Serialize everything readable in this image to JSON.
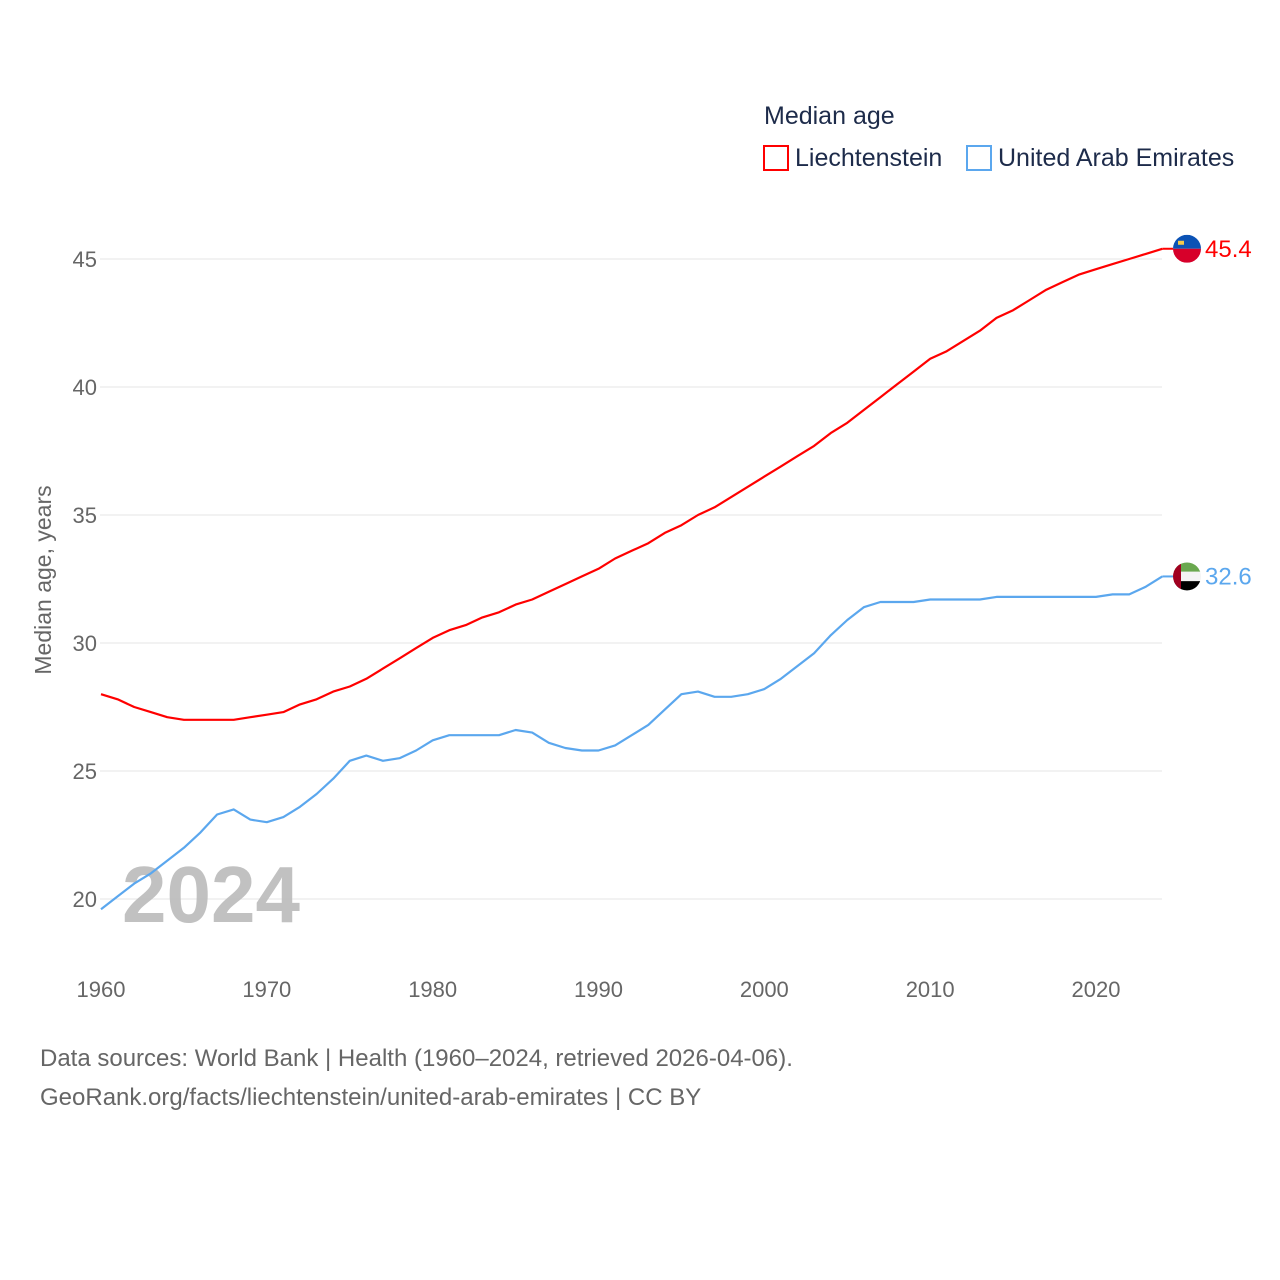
{
  "chart_data": {
    "type": "line",
    "title": "",
    "legend_title": "Median age",
    "legend_position": "top-right",
    "ylabel": "Median age, years",
    "xlabel": "",
    "ylim": [
      19,
      46.5
    ],
    "xlim": [
      1960,
      2024
    ],
    "yticks": [
      20,
      25,
      30,
      35,
      40,
      45
    ],
    "ytick_labels": [
      "20",
      "25",
      "30",
      "35",
      "40",
      "45"
    ],
    "xticks": [
      1960,
      1970,
      1980,
      1990,
      2000,
      2010,
      2020
    ],
    "xtick_labels": [
      "1960",
      "1970",
      "1980",
      "1990",
      "2000",
      "2010",
      "2020"
    ],
    "grid": true,
    "year_watermark": "2024",
    "x": [
      1960,
      1961,
      1962,
      1963,
      1964,
      1965,
      1966,
      1967,
      1968,
      1969,
      1970,
      1971,
      1972,
      1973,
      1974,
      1975,
      1976,
      1977,
      1978,
      1979,
      1980,
      1981,
      1982,
      1983,
      1984,
      1985,
      1986,
      1987,
      1988,
      1989,
      1990,
      1991,
      1992,
      1993,
      1994,
      1995,
      1996,
      1997,
      1998,
      1999,
      2000,
      2001,
      2002,
      2003,
      2004,
      2005,
      2006,
      2007,
      2008,
      2009,
      2010,
      2011,
      2012,
      2013,
      2014,
      2015,
      2016,
      2017,
      2018,
      2019,
      2020,
      2021,
      2022,
      2023,
      2024
    ],
    "series": [
      {
        "name": "Liechtenstein",
        "color": "#ff0000",
        "end_label": "45.4",
        "flag": "liechtenstein-flag",
        "values": [
          28.0,
          27.8,
          27.5,
          27.3,
          27.1,
          27.0,
          27.0,
          27.0,
          27.0,
          27.1,
          27.2,
          27.3,
          27.6,
          27.8,
          28.1,
          28.3,
          28.6,
          29.0,
          29.4,
          29.8,
          30.2,
          30.5,
          30.7,
          31.0,
          31.2,
          31.5,
          31.7,
          32.0,
          32.3,
          32.6,
          32.9,
          33.3,
          33.6,
          33.9,
          34.3,
          34.6,
          35.0,
          35.3,
          35.7,
          36.1,
          36.5,
          36.9,
          37.3,
          37.7,
          38.2,
          38.6,
          39.1,
          39.6,
          40.1,
          40.6,
          41.1,
          41.4,
          41.8,
          42.2,
          42.7,
          43.0,
          43.4,
          43.8,
          44.1,
          44.4,
          44.6,
          44.8,
          45.0,
          45.2,
          45.4
        ]
      },
      {
        "name": "United Arab Emirates",
        "color": "#5ba7ee",
        "end_label": "32.6",
        "flag": "uae-flag",
        "values": [
          19.6,
          20.1,
          20.6,
          21.0,
          21.5,
          22.0,
          22.6,
          23.3,
          23.5,
          23.1,
          23.0,
          23.2,
          23.6,
          24.1,
          24.7,
          25.4,
          25.6,
          25.4,
          25.5,
          25.8,
          26.2,
          26.4,
          26.4,
          26.4,
          26.4,
          26.6,
          26.5,
          26.1,
          25.9,
          25.8,
          25.8,
          26.0,
          26.4,
          26.8,
          27.4,
          28.0,
          28.1,
          27.9,
          27.9,
          28.0,
          28.2,
          28.6,
          29.1,
          29.6,
          30.3,
          30.9,
          31.4,
          31.6,
          31.6,
          31.6,
          31.7,
          31.7,
          31.7,
          31.7,
          31.8,
          31.8,
          31.8,
          31.8,
          31.8,
          31.8,
          31.8,
          31.9,
          31.9,
          32.2,
          32.6
        ]
      }
    ]
  },
  "footer": {
    "line1": "Data sources: World Bank | Health (1960–2024, retrieved 2026-04-06).",
    "line2": "GeoRank.org/facts/liechtenstein/united-arab-emirates | CC BY"
  }
}
